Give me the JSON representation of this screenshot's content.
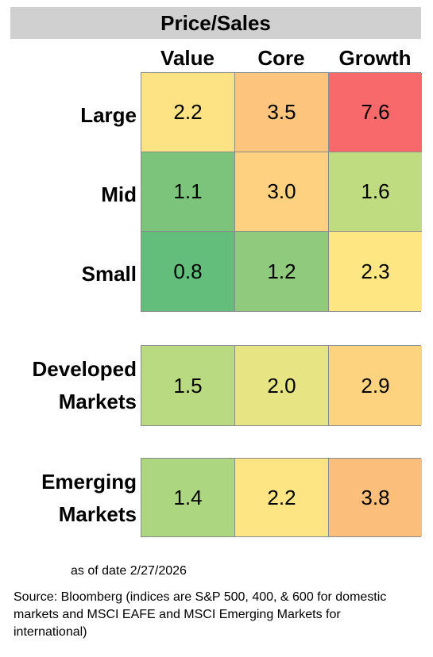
{
  "title": "Price/Sales",
  "columns": [
    "Value",
    "Core",
    "Growth"
  ],
  "rows": {
    "large": {
      "label": "Large",
      "values": [
        "2.2",
        "3.5",
        "7.6"
      ],
      "colors": [
        "#fde383",
        "#fdc47d",
        "#f8696b"
      ]
    },
    "mid": {
      "label": "Mid",
      "values": [
        "1.1",
        "3.0",
        "1.6"
      ],
      "colors": [
        "#7cc47c",
        "#fdd17f",
        "#c0dc81"
      ]
    },
    "small": {
      "label": "Small",
      "values": [
        "0.8",
        "1.2",
        "2.3"
      ],
      "colors": [
        "#63be7b",
        "#8fca7d",
        "#fee683"
      ]
    },
    "developed": {
      "label_lines": [
        "Developed",
        "Markets"
      ],
      "values": [
        "1.5",
        "2.0",
        "2.9"
      ],
      "colors": [
        "#b9da80",
        "#e6e483",
        "#fdd380"
      ]
    },
    "emerging": {
      "label_lines": [
        "Emerging",
        "Markets"
      ],
      "values": [
        "1.4",
        "2.2",
        "3.8"
      ],
      "colors": [
        "#acd67f",
        "#fde583",
        "#fcbf7b"
      ]
    }
  },
  "as_of_label": "as of date",
  "as_of_date": "2/27/2026",
  "source_text": "Source: Bloomberg (indices are S&P 500, 400, & 600 for domestic markets and MSCI EAFE and MSCI Emerging Markets for international)",
  "chart_data": {
    "type": "heatmap",
    "title": "Price/Sales",
    "x_categories": [
      "Value",
      "Core",
      "Growth"
    ],
    "y_categories": [
      "Large",
      "Mid",
      "Small",
      "Developed Markets",
      "Emerging Markets"
    ],
    "values": [
      [
        2.2,
        3.5,
        7.6
      ],
      [
        1.1,
        3.0,
        1.6
      ],
      [
        0.8,
        1.2,
        2.3
      ],
      [
        1.5,
        2.0,
        2.9
      ],
      [
        1.4,
        2.2,
        3.8
      ]
    ],
    "color_scale": {
      "low": "#63be7b",
      "mid": "#ffeb84",
      "high": "#f8696b"
    }
  }
}
